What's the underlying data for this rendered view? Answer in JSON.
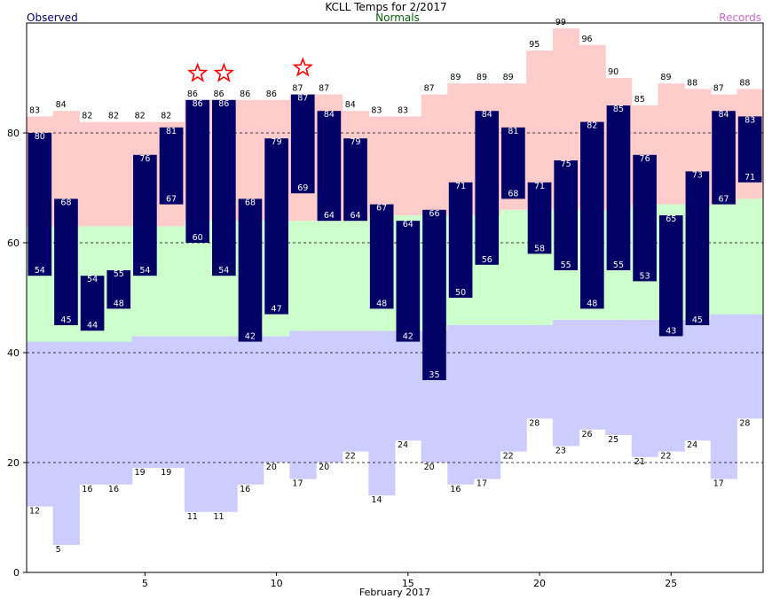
{
  "chart_data": {
    "type": "bar",
    "title": "KCLL Temps for 2/2017",
    "legend": {
      "observed": "Observed",
      "normals": "Normals",
      "records": "Records"
    },
    "xlabel": "February 2017",
    "x_ticks": [
      5,
      10,
      15,
      20,
      25
    ],
    "y_ticks": [
      0,
      20,
      40,
      60,
      80
    ],
    "ylim": [
      0,
      100
    ],
    "grid_lines": [
      20,
      40,
      60,
      80
    ],
    "colors": {
      "observed": "#000066",
      "normals_band": "#ccffcc",
      "record_high_band": "#ffcccc",
      "record_low_band": "#ccccff",
      "observed_text": "#000066",
      "normals_text": "#006600",
      "records_text": "#cc66cc",
      "record_star": "#ff0000"
    },
    "days": [
      1,
      2,
      3,
      4,
      5,
      6,
      7,
      8,
      9,
      10,
      11,
      12,
      13,
      14,
      15,
      16,
      17,
      18,
      19,
      20,
      21,
      22,
      23,
      24,
      25,
      26,
      27,
      28
    ],
    "observed_high": [
      80,
      68,
      54,
      55,
      76,
      81,
      86,
      86,
      68,
      79,
      87,
      84,
      79,
      67,
      64,
      66,
      71,
      84,
      81,
      71,
      75,
      82,
      85,
      76,
      65,
      73,
      84,
      83
    ],
    "observed_low": [
      54,
      45,
      44,
      48,
      54,
      67,
      60,
      54,
      42,
      47,
      69,
      64,
      64,
      48,
      42,
      35,
      50,
      56,
      68,
      58,
      55,
      48,
      55,
      53,
      43,
      45,
      67,
      71
    ],
    "normal_high": [
      63,
      63,
      63,
      63,
      63,
      63,
      64,
      64,
      64,
      64,
      64,
      64,
      64,
      65,
      65,
      65,
      65,
      65,
      66,
      66,
      66,
      66,
      66,
      67,
      67,
      67,
      67,
      68
    ],
    "normal_low": [
      42,
      42,
      42,
      42,
      43,
      43,
      43,
      43,
      43,
      43,
      44,
      44,
      44,
      44,
      44,
      44,
      45,
      45,
      45,
      45,
      46,
      46,
      46,
      46,
      46,
      46,
      47,
      47
    ],
    "record_high": [
      83,
      84,
      82,
      82,
      82,
      82,
      86,
      86,
      86,
      86,
      87,
      87,
      84,
      83,
      83,
      87,
      89,
      89,
      89,
      95,
      99,
      96,
      90,
      85,
      89,
      88,
      87,
      88
    ],
    "record_low": [
      12,
      5,
      16,
      16,
      19,
      19,
      11,
      11,
      16,
      20,
      17,
      20,
      22,
      14,
      24,
      20,
      16,
      17,
      22,
      28,
      23,
      26,
      25,
      21,
      22,
      24,
      17,
      28
    ],
    "record_set_days": [
      7,
      8,
      11
    ]
  }
}
